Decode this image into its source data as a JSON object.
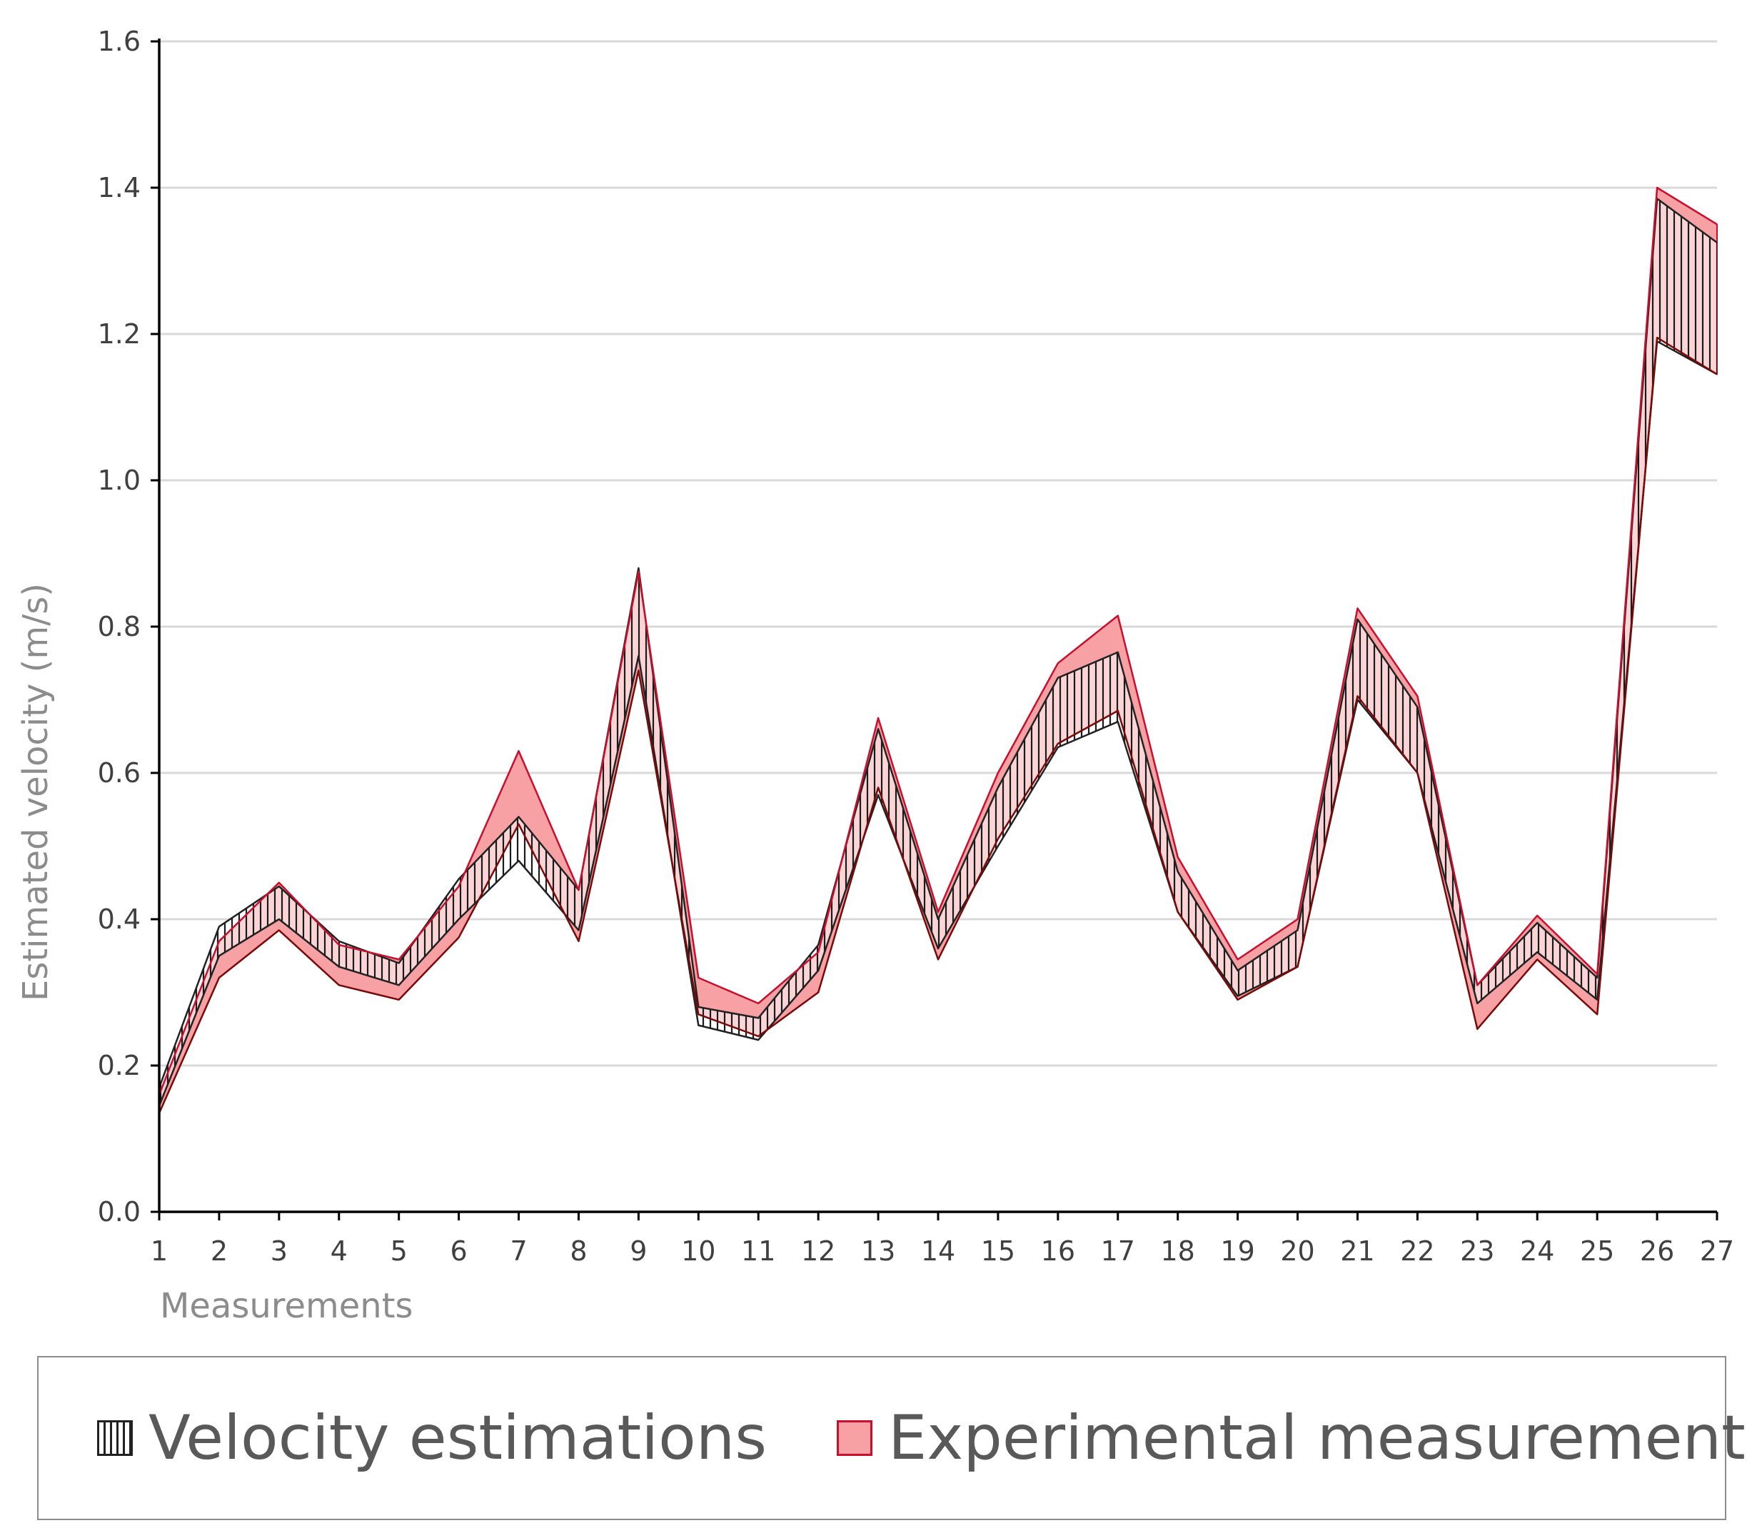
{
  "chart_data": {
    "type": "area",
    "title": "",
    "xlabel": "Measurements",
    "ylabel": "Estimated velocity (m/s)",
    "categories": [
      "1",
      "2",
      "3",
      "4",
      "5",
      "6",
      "7",
      "8",
      "9",
      "10",
      "11",
      "12",
      "13",
      "14",
      "15",
      "16",
      "17",
      "18",
      "19",
      "20",
      "21",
      "22",
      "23",
      "24",
      "25",
      "26",
      "27"
    ],
    "ylim": [
      0,
      1.6
    ],
    "yticks": [
      "0.0",
      "0.2",
      "0.4",
      "0.6",
      "0.8",
      "1.0",
      "1.2",
      "1.4",
      "1.6"
    ],
    "grid": true,
    "legend_position": "bottom",
    "series": [
      {
        "name": "Velocity estimations",
        "pattern": "vertical-hatch",
        "lower": [
          0.145,
          0.35,
          0.4,
          0.335,
          0.31,
          0.4,
          0.48,
          0.385,
          0.76,
          0.255,
          0.235,
          0.33,
          0.57,
          0.36,
          0.5,
          0.635,
          0.67,
          0.41,
          0.295,
          0.335,
          0.7,
          0.6,
          0.285,
          0.355,
          0.29,
          1.19,
          1.145
        ],
        "upper": [
          0.17,
          0.39,
          0.445,
          0.37,
          0.34,
          0.455,
          0.54,
          0.44,
          0.88,
          0.28,
          0.265,
          0.365,
          0.66,
          0.4,
          0.58,
          0.73,
          0.765,
          0.465,
          0.33,
          0.385,
          0.81,
          0.69,
          0.31,
          0.395,
          0.32,
          1.385,
          1.325
        ]
      },
      {
        "name": "Experimental measurements",
        "fill": "#f7a1a4",
        "stroke": "#c8102e",
        "lower": [
          0.135,
          0.32,
          0.385,
          0.31,
          0.29,
          0.375,
          0.53,
          0.37,
          0.74,
          0.27,
          0.24,
          0.3,
          0.58,
          0.345,
          0.51,
          0.64,
          0.685,
          0.41,
          0.29,
          0.335,
          0.705,
          0.6,
          0.25,
          0.345,
          0.27,
          1.195,
          1.145
        ],
        "upper": [
          0.16,
          0.37,
          0.45,
          0.365,
          0.345,
          0.445,
          0.63,
          0.44,
          0.875,
          0.32,
          0.285,
          0.355,
          0.675,
          0.41,
          0.6,
          0.75,
          0.815,
          0.485,
          0.345,
          0.4,
          0.825,
          0.705,
          0.31,
          0.405,
          0.325,
          1.4,
          1.35
        ]
      }
    ]
  },
  "legend": {
    "est_label": "Velocity estimations",
    "exp_label": "Experimental measurements"
  },
  "colors": {
    "grid": "#d9d9d9",
    "axis": "#000000",
    "exp_fill": "#f7a1a4",
    "exp_stroke": "#c8102e",
    "hatch": "#1a1a1a",
    "line": "#7a0a0a"
  }
}
